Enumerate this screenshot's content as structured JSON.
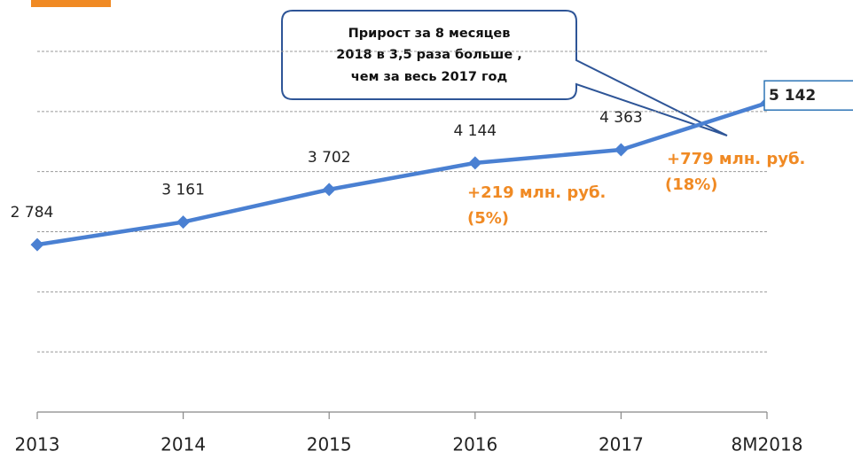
{
  "chart_data": {
    "type": "line",
    "categories": [
      "2013",
      "2014",
      "2015",
      "2016",
      "2017",
      "8M2018"
    ],
    "values": [
      2784,
      3161,
      3702,
      4144,
      4363,
      5142
    ],
    "value_labels": [
      "2 784",
      "3 161",
      "3 702",
      "4 144",
      "4 363",
      "5 142"
    ],
    "color": "#4a80d2",
    "ylim": [
      0,
      6000
    ],
    "yticks": [
      0,
      1000,
      2000,
      3000,
      4000,
      5000,
      6000
    ],
    "grid": true,
    "callout": [
      "Прирост за 8 месяцев",
      "2018  в 3,5 раза больше ,",
      "чем за весь 2017 год"
    ],
    "annotations": [
      [
        "+219 млн. руб.",
        "(5%)"
      ],
      [
        "+779 млн. руб.",
        "(18%)"
      ]
    ]
  }
}
